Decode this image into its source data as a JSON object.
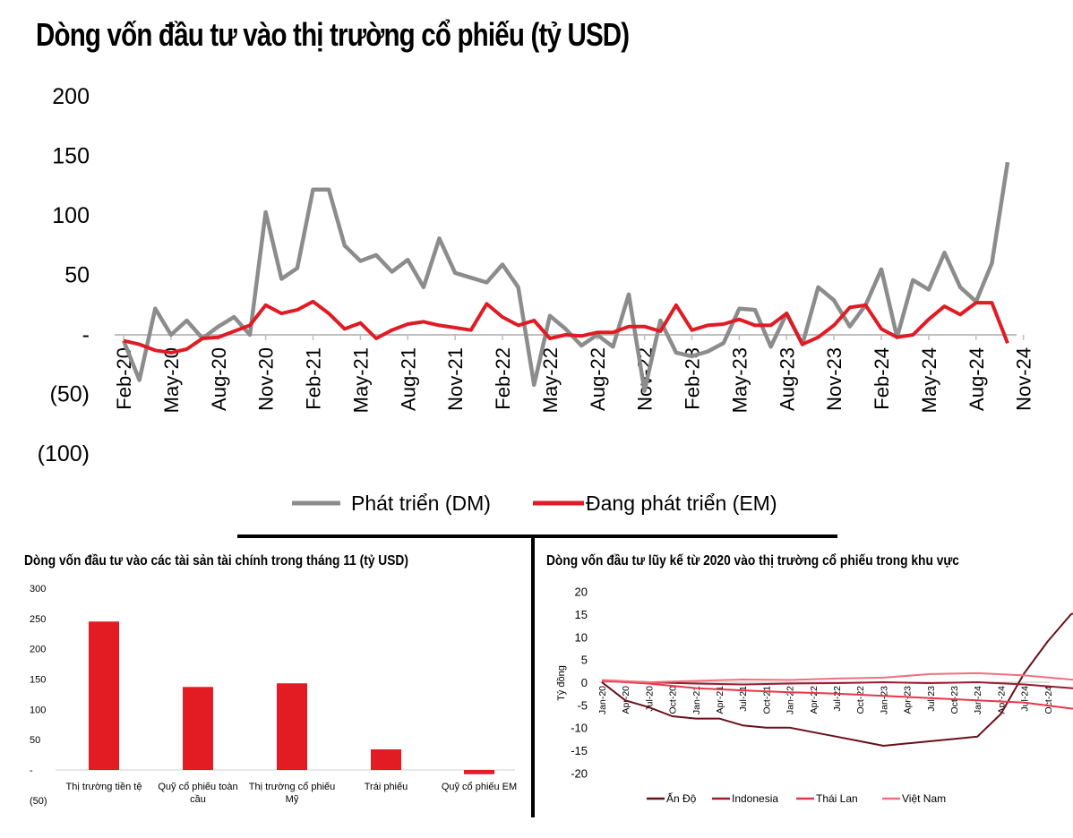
{
  "main": {
    "title": "Dòng vốn đầu tư vào thị trường cổ phiếu (tỷ USD)"
  },
  "bar_panel": {
    "title": "Dòng vốn đầu tư vào các tài sản tài chính trong tháng 11 (tỷ USD)"
  },
  "cum_panel": {
    "title": "Dòng vốn đầu tư lũy kế từ 2020 vào thị trường cổ phiếu trong khu vực"
  },
  "colors": {
    "dm": "#8c8c8c",
    "em": "#e01b24",
    "bar": "#e31b23",
    "an_do": "#6b0f1a",
    "indonesia": "#9b1b30",
    "thai_lan": "#e8364a",
    "viet_nam": "#f07080"
  },
  "chart_data": [
    {
      "type": "line",
      "title": "Dòng vốn đầu tư vào thị trường cổ phiếu (tỷ USD)",
      "ylim": [
        -100,
        200
      ],
      "yticks": [
        200,
        150,
        100,
        50,
        0,
        -50,
        -100
      ],
      "ytick_labels": [
        "200",
        "150",
        "100",
        "50",
        "-",
        "(50)",
        "(100)"
      ],
      "xtick_labels": [
        "Feb-20",
        "May-20",
        "Aug-20",
        "Nov-20",
        "Feb-21",
        "May-21",
        "Aug-21",
        "Nov-21",
        "Feb-22",
        "May-22",
        "Aug-22",
        "Nov-22",
        "Feb-23",
        "May-23",
        "Aug-23",
        "Nov-23",
        "Feb-24",
        "May-24",
        "Aug-24",
        "Nov-24"
      ],
      "legend": [
        "Phát triển (DM)",
        "Đang phát triển (EM)"
      ],
      "series": [
        {
          "name": "Phát triển (DM)",
          "values": [
            -5,
            -38,
            22,
            0,
            12,
            -3,
            7,
            15,
            0,
            103,
            47,
            56,
            122,
            122,
            75,
            62,
            67,
            53,
            63,
            40,
            81,
            52,
            48,
            44,
            59,
            40,
            -42,
            16,
            5,
            -9,
            0,
            -10,
            34,
            -47,
            12,
            -15,
            -18,
            -14,
            -7,
            22,
            21,
            -10,
            18,
            -8,
            40,
            29,
            7,
            25,
            55,
            -2,
            46,
            38,
            69,
            40,
            28,
            60,
            145
          ]
        },
        {
          "name": "Đang phát triển (EM)",
          "values": [
            -5,
            -8,
            -13,
            -15,
            -12,
            -3,
            -2,
            3,
            8,
            25,
            18,
            21,
            28,
            18,
            5,
            10,
            -3,
            4,
            9,
            11,
            8,
            6,
            4,
            26,
            15,
            8,
            12,
            -3,
            0,
            -1,
            2,
            2,
            7,
            7,
            3,
            25,
            4,
            8,
            9,
            13,
            8,
            8,
            18,
            -8,
            -2,
            8,
            23,
            25,
            5,
            -2,
            0,
            13,
            24,
            17,
            27,
            27,
            -7
          ]
        }
      ]
    },
    {
      "type": "bar",
      "title": "Dòng vốn đầu tư vào các tài sản tài chính trong tháng 11 (tỷ USD)",
      "categories": [
        "Thị trường tiền tệ",
        "Quỹ cổ phiếu toàn cầu",
        "Thị trường cổ phiếu Mỹ",
        "Trái phiếu",
        "Quỹ cổ phiếu EM"
      ],
      "category_lines": [
        [
          "Thị trường tiền tệ"
        ],
        [
          "Quỹ cổ phiếu toàn",
          "cầu"
        ],
        [
          "Thị trường cổ phiếu",
          "Mỹ"
        ],
        [
          "Trái phiếu"
        ],
        [
          "Quỹ cổ phiếu EM"
        ]
      ],
      "values": [
        245,
        137,
        143,
        34,
        -7
      ],
      "ylim": [
        -50,
        300
      ],
      "yticks": [
        300,
        250,
        200,
        150,
        100,
        50,
        0,
        -50
      ],
      "ytick_labels": [
        "300",
        "250",
        "200",
        "150",
        "100",
        "50",
        "-",
        "(50)"
      ]
    },
    {
      "type": "line",
      "title": "Dòng vốn đầu tư lũy kế từ 2020 vào thị trường cổ phiếu trong khu vực",
      "ylabel": "Tỷ đồng",
      "ylim": [
        -20,
        20
      ],
      "yticks": [
        20,
        15,
        10,
        5,
        0,
        -5,
        -10,
        -15,
        -20
      ],
      "ytick_labels": [
        "20",
        "15",
        "10",
        "5",
        "0",
        "-5",
        "-10",
        "-15",
        "-20"
      ],
      "xtick_labels": [
        "Jan-20",
        "Apr-20",
        "Jul-20",
        "Oct-20",
        "Jan-21",
        "Apr-21",
        "Jul-21",
        "Oct-21",
        "Jan-22",
        "Apr-22",
        "Jul-22",
        "Oct-22",
        "Jan-23",
        "Apr-23",
        "Jul-23",
        "Oct-23",
        "Jan-24",
        "Apr-24",
        "Jul-24",
        "Oct-24"
      ],
      "legend": [
        "Ấn Độ",
        "Indonesia",
        "Thái Lan",
        "Việt Nam"
      ],
      "series": [
        {
          "name": "Ấn Độ",
          "x": [
            0,
            1,
            2,
            3,
            4,
            5,
            6,
            7,
            8,
            9,
            10,
            11,
            12,
            13,
            14,
            15,
            16,
            17,
            18,
            19,
            20,
            20.5
          ],
          "values": [
            0,
            -4,
            -5.5,
            -7.5,
            -8,
            -8,
            -9.5,
            -10,
            -10,
            -11,
            -12,
            -13,
            -14,
            -13.5,
            -13,
            -12.5,
            -12,
            -7,
            2,
            9,
            15,
            15.5
          ]
        },
        {
          "name": "Indonesia",
          "x": [
            0,
            2,
            4,
            6,
            8,
            10,
            12,
            14,
            16,
            18,
            20,
            20.5
          ],
          "values": [
            0.3,
            0,
            -0.3,
            -0.5,
            -0.3,
            -0.2,
            0,
            -0.2,
            0,
            -0.5,
            -1.3,
            -1.5
          ]
        },
        {
          "name": "Thái Lan",
          "x": [
            0,
            2,
            4,
            6,
            8,
            10,
            12,
            14,
            16,
            18,
            20,
            20.5
          ],
          "values": [
            0.3,
            -0.3,
            -1.3,
            -1.8,
            -2.2,
            -2.5,
            -3,
            -3.5,
            -4,
            -4.5,
            -5.8,
            -6
          ]
        },
        {
          "name": "Việt Nam",
          "x": [
            0,
            2,
            4,
            6,
            8,
            10,
            12,
            14,
            16,
            18,
            20,
            20.5
          ],
          "values": [
            0.5,
            0,
            0.3,
            0.6,
            0.5,
            0.8,
            1,
            1.8,
            2,
            1.5,
            0.6,
            0.4
          ]
        }
      ]
    }
  ]
}
